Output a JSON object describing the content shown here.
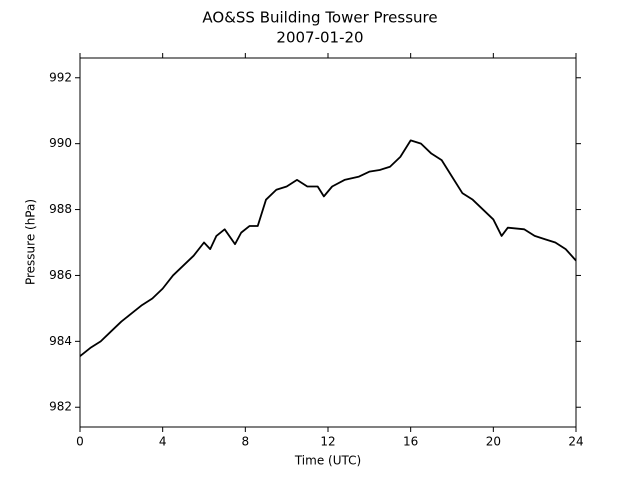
{
  "chart_data": {
    "type": "line",
    "title": "AO&SS Building Tower Pressure",
    "subtitle": "2007-01-20",
    "x_label": "Time (UTC)",
    "y_label": "Pressure (hPa)",
    "x": [
      0,
      0.5,
      1,
      1.5,
      2,
      2.5,
      3,
      3.5,
      4,
      4.5,
      5,
      5.5,
      6,
      6.3,
      6.6,
      7,
      7.5,
      7.8,
      8.2,
      8.6,
      9,
      9.5,
      10,
      10.5,
      11,
      11.5,
      11.8,
      12.2,
      12.8,
      13.5,
      14,
      14.5,
      15,
      15.5,
      16,
      16.5,
      17,
      17.5,
      18,
      18.5,
      19,
      19.5,
      20,
      20.4,
      20.7,
      21.5,
      22,
      22.5,
      23,
      23.5,
      24
    ],
    "values": [
      983.55,
      983.8,
      984.0,
      984.3,
      984.6,
      984.85,
      985.1,
      985.3,
      985.6,
      986.0,
      986.3,
      986.6,
      987.0,
      986.8,
      987.2,
      987.4,
      986.95,
      987.3,
      987.5,
      987.5,
      988.3,
      988.6,
      988.7,
      988.9,
      988.7,
      988.7,
      988.4,
      988.7,
      988.9,
      989.0,
      989.15,
      989.2,
      989.3,
      989.6,
      990.1,
      990.0,
      989.7,
      989.5,
      989.0,
      988.5,
      988.3,
      988.0,
      987.7,
      987.2,
      987.45,
      987.4,
      987.2,
      987.1,
      987.0,
      986.8,
      986.45
    ],
    "color": "#000000",
    "xlim": [
      0,
      24
    ],
    "xticks": [
      0,
      4,
      8,
      12,
      16,
      20,
      24
    ],
    "ylim": [
      981.4,
      992.6
    ],
    "yticks": [
      982,
      984,
      986,
      988,
      990,
      992
    ]
  }
}
